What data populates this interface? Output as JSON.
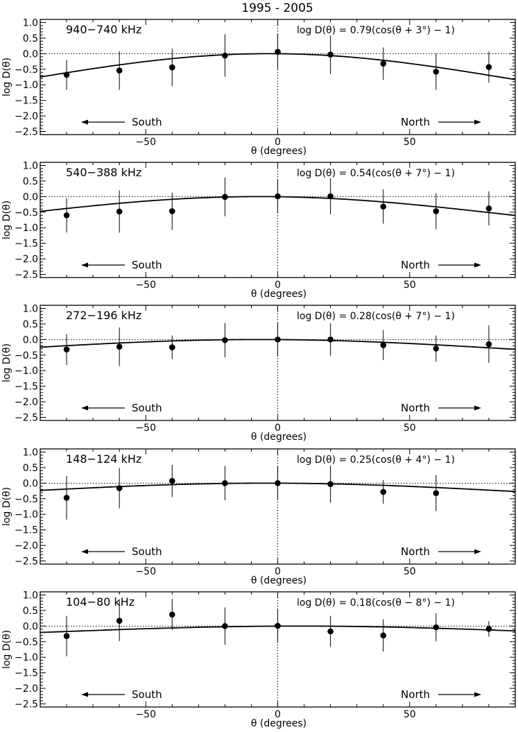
{
  "figure": {
    "title": "1995 - 2005",
    "colors": {
      "ink": "#000000",
      "background": "#ffffff"
    }
  },
  "chart_data": [
    {
      "type": "scatter",
      "title": "940−740 kHz",
      "fit_label": "log D(θ)  = 0.79(cos(θ + 3°) − 1)",
      "fit": {
        "amplitude": 0.79,
        "offset_deg": -3
      },
      "xlabel": "θ (degrees)",
      "ylabel": "log  D(θ)",
      "xlim": [
        -90,
        90
      ],
      "ylim": [
        -2.6,
        1.1
      ],
      "xticks": [
        -50,
        0,
        50
      ],
      "xtick_labels": [
        "−50",
        "0",
        "50"
      ],
      "yticks": [
        1.0,
        0.5,
        0.0,
        -0.5,
        -1.0,
        -1.5,
        -2.0,
        -2.5
      ],
      "ytick_labels": [
        "1.0",
        "0.5",
        "0.0",
        "−0.5",
        "−1.0",
        "−1.5",
        "−2.0",
        "−2.5"
      ],
      "south_label": "South",
      "north_label": "North",
      "points": [
        {
          "x": -80,
          "y": -0.68,
          "err": 0.48
        },
        {
          "x": -60,
          "y": -0.54,
          "err": 0.62
        },
        {
          "x": -40,
          "y": -0.44,
          "err": 0.6
        },
        {
          "x": -20,
          "y": -0.06,
          "err": 0.68
        },
        {
          "x": 0,
          "y": 0.06,
          "err": 0.56
        },
        {
          "x": 20,
          "y": -0.03,
          "err": 0.62
        },
        {
          "x": 40,
          "y": -0.32,
          "err": 0.52
        },
        {
          "x": 60,
          "y": -0.58,
          "err": 0.58
        },
        {
          "x": 80,
          "y": -0.43,
          "err": 0.5
        }
      ]
    },
    {
      "type": "scatter",
      "title": "540−388 kHz",
      "fit_label": "log D(θ)  = 0.54(cos(θ + 7°) − 1)",
      "fit": {
        "amplitude": 0.54,
        "offset_deg": -7
      },
      "xlabel": "θ (degrees)",
      "ylabel": "log  D(θ)",
      "xlim": [
        -90,
        90
      ],
      "ylim": [
        -2.6,
        1.1
      ],
      "xticks": [
        -50,
        0,
        50
      ],
      "xtick_labels": [
        "−50",
        "0",
        "50"
      ],
      "yticks": [
        1.0,
        0.5,
        0.0,
        -0.5,
        -1.0,
        -1.5,
        -2.0,
        -2.5
      ],
      "ytick_labels": [
        "1.0",
        "0.5",
        "0.0",
        "−0.5",
        "−1.0",
        "−1.5",
        "−2.0",
        "−2.5"
      ],
      "south_label": "South",
      "north_label": "North",
      "points": [
        {
          "x": -80,
          "y": -0.6,
          "err": 0.55
        },
        {
          "x": -60,
          "y": -0.48,
          "err": 0.68
        },
        {
          "x": -40,
          "y": -0.47,
          "err": 0.6
        },
        {
          "x": -20,
          "y": -0.01,
          "err": 0.62
        },
        {
          "x": 0,
          "y": 0.01,
          "err": 0.55
        },
        {
          "x": 20,
          "y": 0.01,
          "err": 0.58
        },
        {
          "x": 40,
          "y": -0.32,
          "err": 0.55
        },
        {
          "x": 60,
          "y": -0.47,
          "err": 0.58
        },
        {
          "x": 80,
          "y": -0.38,
          "err": 0.55
        }
      ]
    },
    {
      "type": "scatter",
      "title": "272−196 kHz",
      "fit_label": "log D(θ)  = 0.28(cos(θ + 7°) − 1)",
      "fit": {
        "amplitude": 0.28,
        "offset_deg": -7
      },
      "xlabel": "θ (degrees)",
      "ylabel": "log  D(θ)",
      "xlim": [
        -90,
        90
      ],
      "ylim": [
        -2.6,
        1.1
      ],
      "xticks": [
        -50,
        0,
        50
      ],
      "xtick_labels": [
        "−50",
        "0",
        "50"
      ],
      "yticks": [
        1.0,
        0.5,
        0.0,
        -0.5,
        -1.0,
        -1.5,
        -2.0,
        -2.5
      ],
      "ytick_labels": [
        "1.0",
        "0.5",
        "0.0",
        "−0.5",
        "−1.0",
        "−1.5",
        "−2.0",
        "−2.5"
      ],
      "south_label": "South",
      "north_label": "North",
      "points": [
        {
          "x": -80,
          "y": -0.32,
          "err": 0.5
        },
        {
          "x": -60,
          "y": -0.23,
          "err": 0.62
        },
        {
          "x": -40,
          "y": -0.25,
          "err": 0.38
        },
        {
          "x": -20,
          "y": -0.02,
          "err": 0.55
        },
        {
          "x": 0,
          "y": 0.0,
          "err": 0.55
        },
        {
          "x": 20,
          "y": 0.0,
          "err": 0.52
        },
        {
          "x": 40,
          "y": -0.18,
          "err": 0.48
        },
        {
          "x": 60,
          "y": -0.29,
          "err": 0.42
        },
        {
          "x": 80,
          "y": -0.15,
          "err": 0.6
        }
      ]
    },
    {
      "type": "scatter",
      "title": "148−124 kHz",
      "fit_label": "log D(θ)  = 0.25(cos(θ + 4°) − 1)",
      "fit": {
        "amplitude": 0.25,
        "offset_deg": -4
      },
      "xlabel": "θ (degrees)",
      "ylabel": "log  D(θ)",
      "xlim": [
        -90,
        90
      ],
      "ylim": [
        -2.6,
        1.1
      ],
      "xticks": [
        -50,
        0,
        50
      ],
      "xtick_labels": [
        "−50",
        "0",
        "50"
      ],
      "yticks": [
        1.0,
        0.5,
        0.0,
        -0.5,
        -1.0,
        -1.5,
        -2.0,
        -2.5
      ],
      "ytick_labels": [
        "1.0",
        "0.5",
        "0.0",
        "−0.5",
        "−1.0",
        "−1.5",
        "−2.0",
        "−2.5"
      ],
      "south_label": "South",
      "north_label": "North",
      "points": [
        {
          "x": -80,
          "y": -0.47,
          "err": 0.7
        },
        {
          "x": -60,
          "y": -0.16,
          "err": 0.65
        },
        {
          "x": -40,
          "y": 0.07,
          "err": 0.52
        },
        {
          "x": -20,
          "y": 0.0,
          "err": 0.55
        },
        {
          "x": 0,
          "y": 0.0,
          "err": 0.55
        },
        {
          "x": 20,
          "y": -0.03,
          "err": 0.6
        },
        {
          "x": 40,
          "y": -0.28,
          "err": 0.38
        },
        {
          "x": 60,
          "y": -0.32,
          "err": 0.58
        }
      ]
    },
    {
      "type": "scatter",
      "title": "104−80 kHz",
      "fit_label": "log D(θ)  = 0.18(cos(θ − 8°) − 1)",
      "fit": {
        "amplitude": 0.18,
        "offset_deg": 8
      },
      "xlabel": "θ (degrees)",
      "ylabel": "log  D(θ)",
      "xlim": [
        -90,
        90
      ],
      "ylim": [
        -2.6,
        1.1
      ],
      "xticks": [
        -50,
        0,
        50
      ],
      "xtick_labels": [
        "−50",
        "0",
        "50"
      ],
      "yticks": [
        1.0,
        0.5,
        0.0,
        -0.5,
        -1.0,
        -1.5,
        -2.0,
        -2.5
      ],
      "ytick_labels": [
        "1.0",
        "0.5",
        "0.0",
        "−0.5",
        "−1.0",
        "−1.5",
        "−2.0",
        "−2.5"
      ],
      "south_label": "South",
      "north_label": "North",
      "points": [
        {
          "x": -80,
          "y": -0.32,
          "err": 0.65
        },
        {
          "x": -60,
          "y": 0.17,
          "err": 0.65
        },
        {
          "x": -40,
          "y": 0.37,
          "err": 0.5
        },
        {
          "x": -20,
          "y": 0.0,
          "err": 0.6
        },
        {
          "x": 0,
          "y": 0.01,
          "err": 0.55
        },
        {
          "x": 20,
          "y": -0.17,
          "err": 0.5
        },
        {
          "x": 40,
          "y": -0.3,
          "err": 0.52
        },
        {
          "x": 60,
          "y": -0.04,
          "err": 0.45
        },
        {
          "x": 80,
          "y": -0.09,
          "err": 0.25
        }
      ]
    }
  ]
}
